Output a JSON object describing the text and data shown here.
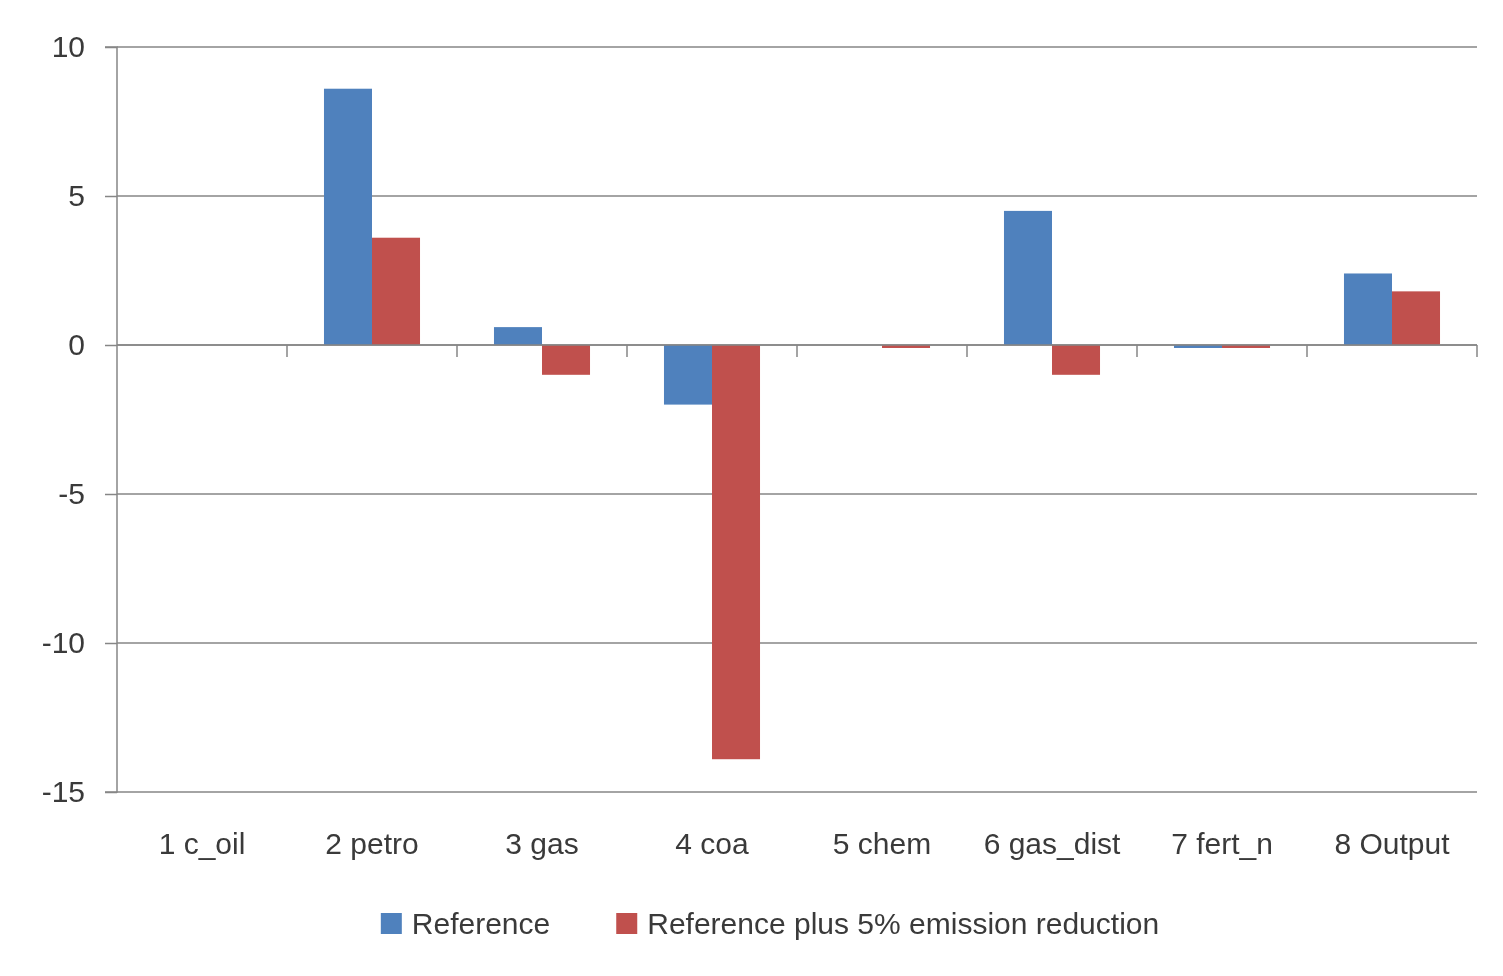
{
  "chart_data": {
    "type": "bar",
    "categories": [
      "1 c_oil",
      "2 petro",
      "3 gas",
      "4 coa",
      "5 chem",
      "6 gas_dist",
      "7 fert_n",
      "8 Output"
    ],
    "series": [
      {
        "name": "Reference",
        "color": "#4f81bd",
        "values": [
          0,
          8.6,
          0.6,
          -2.0,
          0,
          4.5,
          -0.1,
          2.4
        ]
      },
      {
        "name": "Reference plus 5% emission reduction",
        "color": "#c0504d",
        "values": [
          0,
          3.6,
          -1.0,
          -13.9,
          -0.1,
          -1.0,
          -0.1,
          1.8
        ]
      }
    ],
    "ylim": [
      -15,
      10
    ],
    "yticks": [
      -15,
      -10,
      -5,
      0,
      5,
      10
    ],
    "grid": "y",
    "legend": "bottom"
  }
}
